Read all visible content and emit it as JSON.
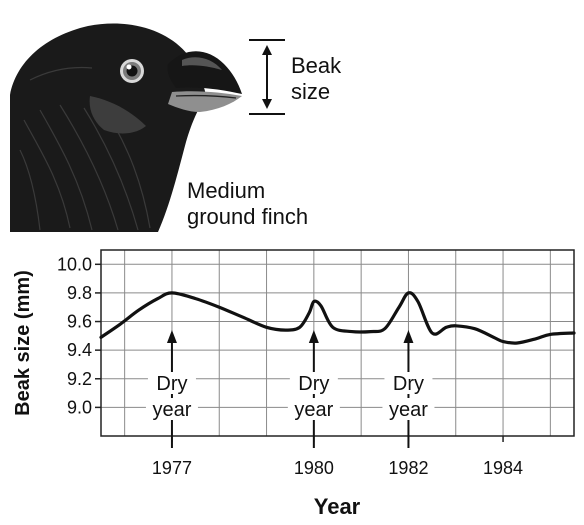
{
  "illustration": {
    "subject_label": "Medium ground finch",
    "subject_label_lines": [
      "Medium",
      "ground finch"
    ],
    "measure_label_lines": [
      "Beak",
      "size"
    ]
  },
  "chart_data": {
    "type": "line",
    "title": "",
    "xlabel": "Year",
    "ylabel": "Beak size (mm)",
    "xlim": [
      1975.5,
      1985.5
    ],
    "ylim": [
      8.8,
      10.1
    ],
    "grid": true,
    "x_ticks": [
      1977,
      1980,
      1982,
      1984
    ],
    "y_ticks": [
      9.0,
      9.2,
      9.4,
      9.6,
      9.8,
      10.0
    ],
    "y_tick_labels": [
      "9.0",
      "9.2",
      "9.4",
      "9.6",
      "9.8",
      "10.0"
    ],
    "series": [
      {
        "color": "#111111",
        "x": [
          1975.5,
          1975.9,
          1976.3,
          1976.7,
          1977.0,
          1977.5,
          1978.0,
          1978.5,
          1979.0,
          1979.4,
          1979.7,
          1979.9,
          1980.0,
          1980.15,
          1980.4,
          1980.8,
          1981.2,
          1981.5,
          1981.8,
          1982.0,
          1982.2,
          1982.5,
          1982.8,
          1983.0,
          1983.4,
          1983.8,
          1984.0,
          1984.3,
          1984.7,
          1985.0,
          1985.5
        ],
        "y": [
          9.49,
          9.58,
          9.68,
          9.76,
          9.8,
          9.76,
          9.7,
          9.63,
          9.56,
          9.54,
          9.56,
          9.66,
          9.74,
          9.71,
          9.56,
          9.53,
          9.53,
          9.55,
          9.7,
          9.8,
          9.74,
          9.52,
          9.56,
          9.57,
          9.55,
          9.49,
          9.46,
          9.45,
          9.48,
          9.51,
          9.52
        ]
      }
    ],
    "annotations": [
      {
        "x": 1977,
        "text_lines": [
          "Dry",
          "year"
        ]
      },
      {
        "x": 1980,
        "text_lines": [
          "Dry",
          "year"
        ]
      },
      {
        "x": 1982,
        "text_lines": [
          "Dry",
          "year"
        ]
      }
    ]
  }
}
